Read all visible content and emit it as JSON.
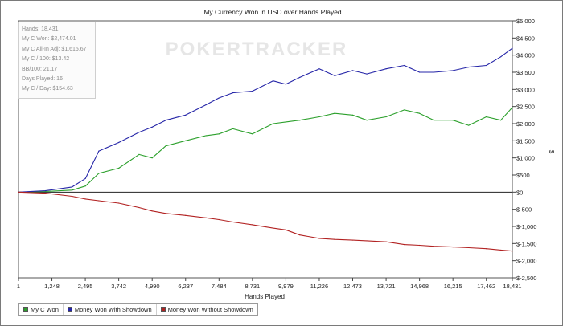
{
  "chart_data": {
    "type": "line",
    "title": "My Currency Won in USD over Hands Played",
    "xlabel": "Hands Played",
    "ylabel": "$",
    "x_ticks": [
      "1",
      "1,248",
      "2,495",
      "3,742",
      "4,990",
      "6,237",
      "7,484",
      "8,731",
      "9,979",
      "11,226",
      "12,473",
      "13,721",
      "14,968",
      "16,215",
      "17,462",
      "18,431"
    ],
    "x_tick_values": [
      1,
      1248,
      2495,
      3742,
      4990,
      6237,
      7484,
      8731,
      9979,
      11226,
      12473,
      13721,
      14968,
      16215,
      17462,
      18431
    ],
    "y_ticks": [
      "$5,000",
      "$4,500",
      "$4,000",
      "$3,500",
      "$3,000",
      "$2,500",
      "$2,000",
      "$1,500",
      "$1,000",
      "$500",
      "$0",
      "$-500",
      "$-1,000",
      "$-1,500",
      "$-2,000",
      "$-2,500"
    ],
    "y_tick_values": [
      5000,
      4500,
      4000,
      3500,
      3000,
      2500,
      2000,
      1500,
      1000,
      500,
      0,
      -500,
      -1000,
      -1500,
      -2000,
      -2500
    ],
    "xlim": [
      1,
      18431
    ],
    "ylim": [
      -2500,
      5000
    ],
    "grid": false,
    "legend_position": "bottom-left",
    "watermark": "POKERTRACKER",
    "x": [
      1,
      1000,
      2000,
      2500,
      3000,
      3742,
      4500,
      4990,
      5500,
      6237,
      7000,
      7484,
      8000,
      8731,
      9500,
      9979,
      10500,
      11226,
      11800,
      12473,
      13000,
      13721,
      14400,
      14968,
      15500,
      16215,
      16800,
      17462,
      18000,
      18431
    ],
    "series": [
      {
        "name": "My C Won",
        "color": "#2ca02c",
        "values": [
          0,
          20,
          60,
          180,
          550,
          700,
          1100,
          1000,
          1350,
          1500,
          1650,
          1700,
          1850,
          1700,
          2000,
          2050,
          2100,
          2200,
          2300,
          2250,
          2100,
          2200,
          2400,
          2300,
          2100,
          2100,
          1950,
          2200,
          2100,
          2474
        ]
      },
      {
        "name": "Money Won With Showdown",
        "color": "#2626a8",
        "values": [
          0,
          40,
          150,
          400,
          1200,
          1450,
          1750,
          1900,
          2100,
          2250,
          2550,
          2750,
          2900,
          2950,
          3250,
          3150,
          3350,
          3600,
          3400,
          3550,
          3450,
          3600,
          3700,
          3500,
          3500,
          3550,
          3650,
          3700,
          3950,
          4200
        ]
      },
      {
        "name": "Money Won Without Showdown",
        "color": "#b22222",
        "values": [
          0,
          -30,
          -120,
          -200,
          -250,
          -320,
          -450,
          -550,
          -620,
          -680,
          -750,
          -800,
          -870,
          -950,
          -1050,
          -1100,
          -1250,
          -1350,
          -1380,
          -1400,
          -1420,
          -1450,
          -1530,
          -1550,
          -1580,
          -1600,
          -1620,
          -1650,
          -1690,
          -1720
        ]
      }
    ]
  },
  "stats": [
    "Hands: 18,431",
    "My C Won: $2,474.01",
    "My C All-In Adj: $1,615.67",
    "My C / 100: $13.42",
    "BB/100: 21.17",
    "Days Played: 16",
    "My C / Day: $154.63"
  ],
  "legend": [
    {
      "label": "My C Won",
      "color": "#2ca02c"
    },
    {
      "label": "Money Won With Showdown",
      "color": "#2626a8"
    },
    {
      "label": "Money Won Without Showdown",
      "color": "#b22222"
    }
  ]
}
